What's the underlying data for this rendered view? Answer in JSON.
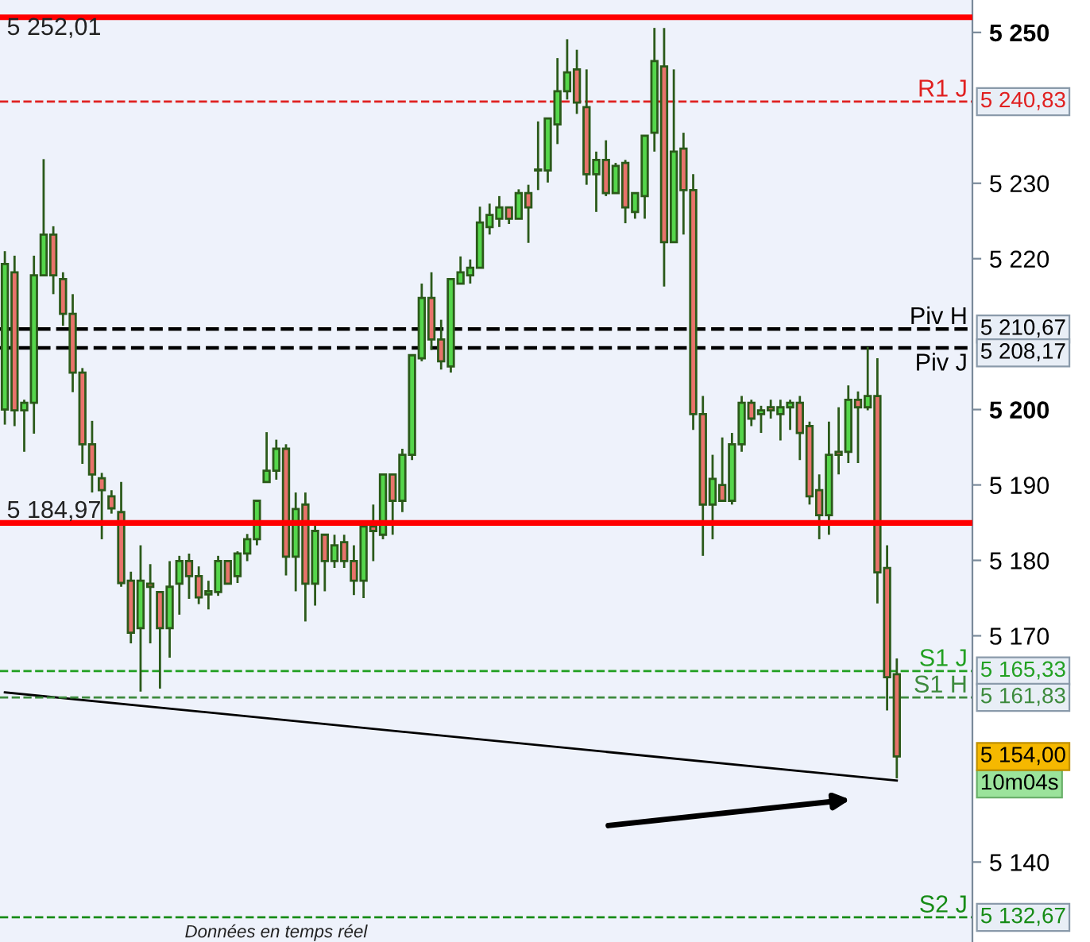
{
  "chart_data": {
    "type": "candlestick",
    "categories": [
      null,
      null,
      null,
      null,
      null,
      null,
      null,
      null,
      null,
      null,
      null,
      null,
      null,
      null,
      null,
      null,
      null,
      null,
      null,
      null,
      null,
      null,
      null,
      null,
      null,
      null,
      null,
      null,
      null,
      null,
      null,
      null,
      null,
      null,
      null,
      null,
      null,
      null,
      null,
      null,
      null,
      null,
      null,
      null,
      null,
      null,
      null,
      null,
      null,
      null,
      null,
      null,
      null,
      null,
      null,
      null,
      null,
      null,
      null,
      null,
      null,
      null,
      null,
      null,
      null,
      null,
      null,
      null,
      null,
      null,
      null,
      null,
      null,
      null,
      null,
      null,
      null,
      null,
      null,
      null,
      null,
      null,
      null,
      null,
      null,
      null,
      null,
      null,
      null,
      null,
      null,
      null,
      null
    ],
    "ohlc": [
      [
        5200.0,
        5221.0,
        5198.0,
        5219.3
      ],
      [
        5218.2,
        5220.4,
        5197.8,
        5199.9
      ],
      [
        5199.9,
        5201.3,
        5194.4,
        5200.9
      ],
      [
        5200.9,
        5220.4,
        5196.8,
        5217.8
      ],
      [
        5217.8,
        5233.2,
        5217.8,
        5223.2
      ],
      [
        5223.2,
        5224.3,
        5215.3,
        5217.8
      ],
      [
        5217.3,
        5218.2,
        5211.1,
        5212.7
      ],
      [
        5212.7,
        5215.3,
        5202.3,
        5204.9
      ],
      [
        5204.9,
        5205.5,
        5192.8,
        5195.4
      ],
      [
        5195.4,
        5198.5,
        5189.0,
        5191.4
      ],
      [
        5190.9,
        5191.6,
        5182.8,
        5189.3
      ],
      [
        5188.5,
        5189.3,
        5186.2,
        5186.9
      ],
      [
        5186.4,
        5190.4,
        5176.5,
        5177.0
      ],
      [
        5177.3,
        5178.5,
        5169.0,
        5170.4
      ],
      [
        5171.0,
        5182.0,
        5162.6,
        5177.3
      ],
      [
        5176.9,
        5179.5,
        5169.0,
        5176.5
      ],
      [
        5175.8,
        5175.8,
        5163.0,
        5171.0
      ],
      [
        5171.0,
        5179.9,
        5167.1,
        5176.5
      ],
      [
        5176.9,
        5180.6,
        5172.8,
        5179.9
      ],
      [
        5179.9,
        5180.9,
        5174.9,
        5177.9
      ],
      [
        5177.9,
        5179.2,
        5174.2,
        5175.1
      ],
      [
        5175.5,
        5177.3,
        5173.5,
        5175.9
      ],
      [
        5175.8,
        5180.6,
        5175.3,
        5179.9
      ],
      [
        5179.9,
        5179.9,
        5176.9,
        5176.9
      ],
      [
        5177.9,
        5181.2,
        5177.0,
        5180.9
      ],
      [
        5180.9,
        5183.5,
        5179.9,
        5182.8
      ],
      [
        5182.8,
        5187.9,
        5182.0,
        5187.9
      ],
      [
        5190.4,
        5197.0,
        5190.4,
        5191.9
      ],
      [
        5191.9,
        5196.0,
        5190.7,
        5194.8
      ],
      [
        5194.8,
        5195.4,
        5178.0,
        5180.5
      ],
      [
        5180.5,
        5189.0,
        5175.9,
        5186.8
      ],
      [
        5187.4,
        5189.0,
        5171.9,
        5176.9
      ],
      [
        5176.9,
        5185.3,
        5174.0,
        5183.9
      ],
      [
        5183.4,
        5183.4,
        5175.9,
        5179.9
      ],
      [
        5179.9,
        5183.4,
        5179.0,
        5182.0
      ],
      [
        5182.4,
        5183.4,
        5179.0,
        5179.9
      ],
      [
        5179.9,
        5182.0,
        5175.4,
        5177.3
      ],
      [
        5177.3,
        5184.5,
        5175.0,
        5184.5
      ],
      [
        5184.5,
        5187.4,
        5179.9,
        5183.9
      ],
      [
        5183.4,
        5191.4,
        5182.8,
        5191.4
      ],
      [
        5191.4,
        5191.4,
        5183.4,
        5187.9
      ],
      [
        5187.9,
        5194.8,
        5186.4,
        5194.0
      ],
      [
        5194.0,
        5207.2,
        5193.3,
        5207.2
      ],
      [
        5206.8,
        5216.7,
        5206.4,
        5214.8
      ],
      [
        5214.8,
        5218.2,
        5207.9,
        5209.3
      ],
      [
        5209.3,
        5211.9,
        5205.3,
        5206.4
      ],
      [
        5205.7,
        5217.3,
        5204.9,
        5217.3
      ],
      [
        5216.7,
        5220.3,
        5216.7,
        5218.2
      ],
      [
        5217.8,
        5219.9,
        5216.7,
        5218.8
      ],
      [
        5218.8,
        5226.9,
        5218.8,
        5224.8
      ],
      [
        5224.2,
        5227.3,
        5223.2,
        5225.8
      ],
      [
        5225.3,
        5228.3,
        5224.2,
        5226.8
      ],
      [
        5226.8,
        5226.8,
        5224.6,
        5225.3
      ],
      [
        5225.3,
        5229.2,
        5225.3,
        5228.7
      ],
      [
        5228.7,
        5229.8,
        5222.1,
        5226.8
      ],
      [
        5231.7,
        5238.2,
        5229.1,
        5231.7
      ],
      [
        5231.7,
        5238.6,
        5230.1,
        5238.6
      ],
      [
        5237.8,
        5246.6,
        5235.2,
        5242.2
      ],
      [
        5242.2,
        5249.1,
        5241.1,
        5244.7
      ],
      [
        5245.1,
        5247.7,
        5239.2,
        5240.7
      ],
      [
        5240.1,
        5245.1,
        5229.8,
        5231.2
      ],
      [
        5231.2,
        5234.2,
        5226.2,
        5233.1
      ],
      [
        5233.1,
        5235.7,
        5228.3,
        5228.7
      ],
      [
        5228.7,
        5232.7,
        5228.7,
        5232.3
      ],
      [
        5232.7,
        5233.1,
        5224.7,
        5226.8
      ],
      [
        5226.2,
        5228.7,
        5225.3,
        5228.7
      ],
      [
        5228.3,
        5236.3,
        5225.3,
        5236.3
      ],
      [
        5236.7,
        5250.6,
        5234.2,
        5246.2
      ],
      [
        5245.5,
        5250.6,
        5216.3,
        5222.2
      ],
      [
        5222.2,
        5245.1,
        5222.2,
        5234.2
      ],
      [
        5234.6,
        5236.7,
        5223.2,
        5229.1
      ],
      [
        5229.1,
        5231.2,
        5197.3,
        5199.4
      ],
      [
        5199.4,
        5201.8,
        5180.6,
        5187.4
      ],
      [
        5187.4,
        5194.0,
        5182.8,
        5190.8
      ],
      [
        5190.0,
        5196.3,
        5187.9,
        5187.9
      ],
      [
        5187.9,
        5196.9,
        5187.4,
        5195.4
      ],
      [
        5195.4,
        5201.8,
        5194.4,
        5200.9
      ],
      [
        5200.9,
        5201.3,
        5197.8,
        5198.8
      ],
      [
        5199.4,
        5200.5,
        5196.9,
        5199.9
      ],
      [
        5200.3,
        5201.3,
        5198.8,
        5199.9
      ],
      [
        5199.4,
        5201.3,
        5195.9,
        5200.3
      ],
      [
        5200.3,
        5201.3,
        5197.3,
        5200.9
      ],
      [
        5200.9,
        5201.8,
        5193.3,
        5196.9
      ],
      [
        5197.8,
        5198.4,
        5187.4,
        5188.5
      ],
      [
        5189.3,
        5191.4,
        5182.8,
        5186.0
      ],
      [
        5186.0,
        5198.4,
        5183.4,
        5194.0
      ],
      [
        5194.4,
        5200.3,
        5191.4,
        5194.0
      ],
      [
        5194.4,
        5203.2,
        5192.9,
        5201.3
      ],
      [
        5201.3,
        5202.4,
        5192.9,
        5200.3
      ],
      [
        5200.3,
        5208.3,
        5199.9,
        5201.8
      ],
      [
        5201.8,
        5206.8,
        5174.3,
        5178.4
      ],
      [
        5179.0,
        5182.0,
        5160.1,
        5164.5
      ],
      [
        5164.9,
        5167.0,
        5151.1,
        5154.0
      ]
    ],
    "series": [
      {
        "type": "line",
        "color": "#000000",
        "values": [
          5162.5,
          null,
          null,
          null,
          null,
          null,
          null,
          null,
          null,
          null,
          null,
          null,
          null,
          null,
          null,
          null,
          null,
          null,
          null,
          null,
          null,
          null,
          null,
          null,
          null,
          null,
          null,
          null,
          null,
          null,
          null,
          null,
          null,
          null,
          null,
          null,
          null,
          null,
          null,
          null,
          null,
          null,
          null,
          null,
          null,
          null,
          null,
          null,
          null,
          null,
          null,
          null,
          null,
          null,
          null,
          null,
          null,
          null,
          null,
          null,
          null,
          null,
          null,
          null,
          null,
          null,
          null,
          null,
          null,
          null,
          null,
          null,
          null,
          null,
          null,
          null,
          null,
          null,
          null,
          null,
          null,
          null,
          null,
          null,
          null,
          null,
          null,
          null,
          null,
          null,
          null,
          null,
          5150.8
        ]
      }
    ],
    "ylim": [
      5129.4,
      5254.3
    ],
    "yticks": [
      {
        "value": 5250,
        "label": "5 250"
      },
      {
        "value": 5230,
        "label": "5 230"
      },
      {
        "value": 5220,
        "label": "5 220"
      },
      {
        "value": 5200,
        "label": "5 200"
      },
      {
        "value": 5190,
        "label": "5 190"
      },
      {
        "value": 5180,
        "label": "5 180"
      },
      {
        "value": 5170,
        "label": "5 170"
      },
      {
        "value": 5140,
        "label": "5 140"
      }
    ],
    "ref_lines": [
      {
        "axis": "y",
        "value": 5252.01,
        "label": "5 252,01",
        "color": "#ff0000",
        "line_style": "solid"
      },
      {
        "axis": "y",
        "value": 5184.97,
        "label": "5 184,97",
        "color": "#ff0000",
        "line_style": "solid"
      },
      {
        "axis": "y",
        "value": 5240.83,
        "label": "R1 J",
        "color": "#e02020",
        "line_style": "dashed"
      },
      {
        "axis": "y",
        "value": 5210.67,
        "label": "Piv H",
        "color": "#000000",
        "line_style": "dashed"
      },
      {
        "axis": "y",
        "value": 5208.17,
        "label": "Piv J",
        "color": "#000000",
        "line_style": "dashed"
      },
      {
        "axis": "y",
        "value": 5165.33,
        "label": "S1 J",
        "color": "#22a022",
        "line_style": "dashed"
      },
      {
        "axis": "y",
        "value": 5161.83,
        "label": "S1 H",
        "color": "#3d8a3d",
        "line_style": "dashed"
      },
      {
        "axis": "y",
        "value": 5132.67,
        "label": "S2 J",
        "color": "#178c17",
        "line_style": "dashed"
      }
    ],
    "annotations": [
      "Données en temps réel",
      "10m04s",
      "5 240,83",
      "5 210,67",
      "5 208,17",
      "5 165,33",
      "5 161,83",
      "5 132,67",
      "5 154,00"
    ],
    "grid": false
  }
}
